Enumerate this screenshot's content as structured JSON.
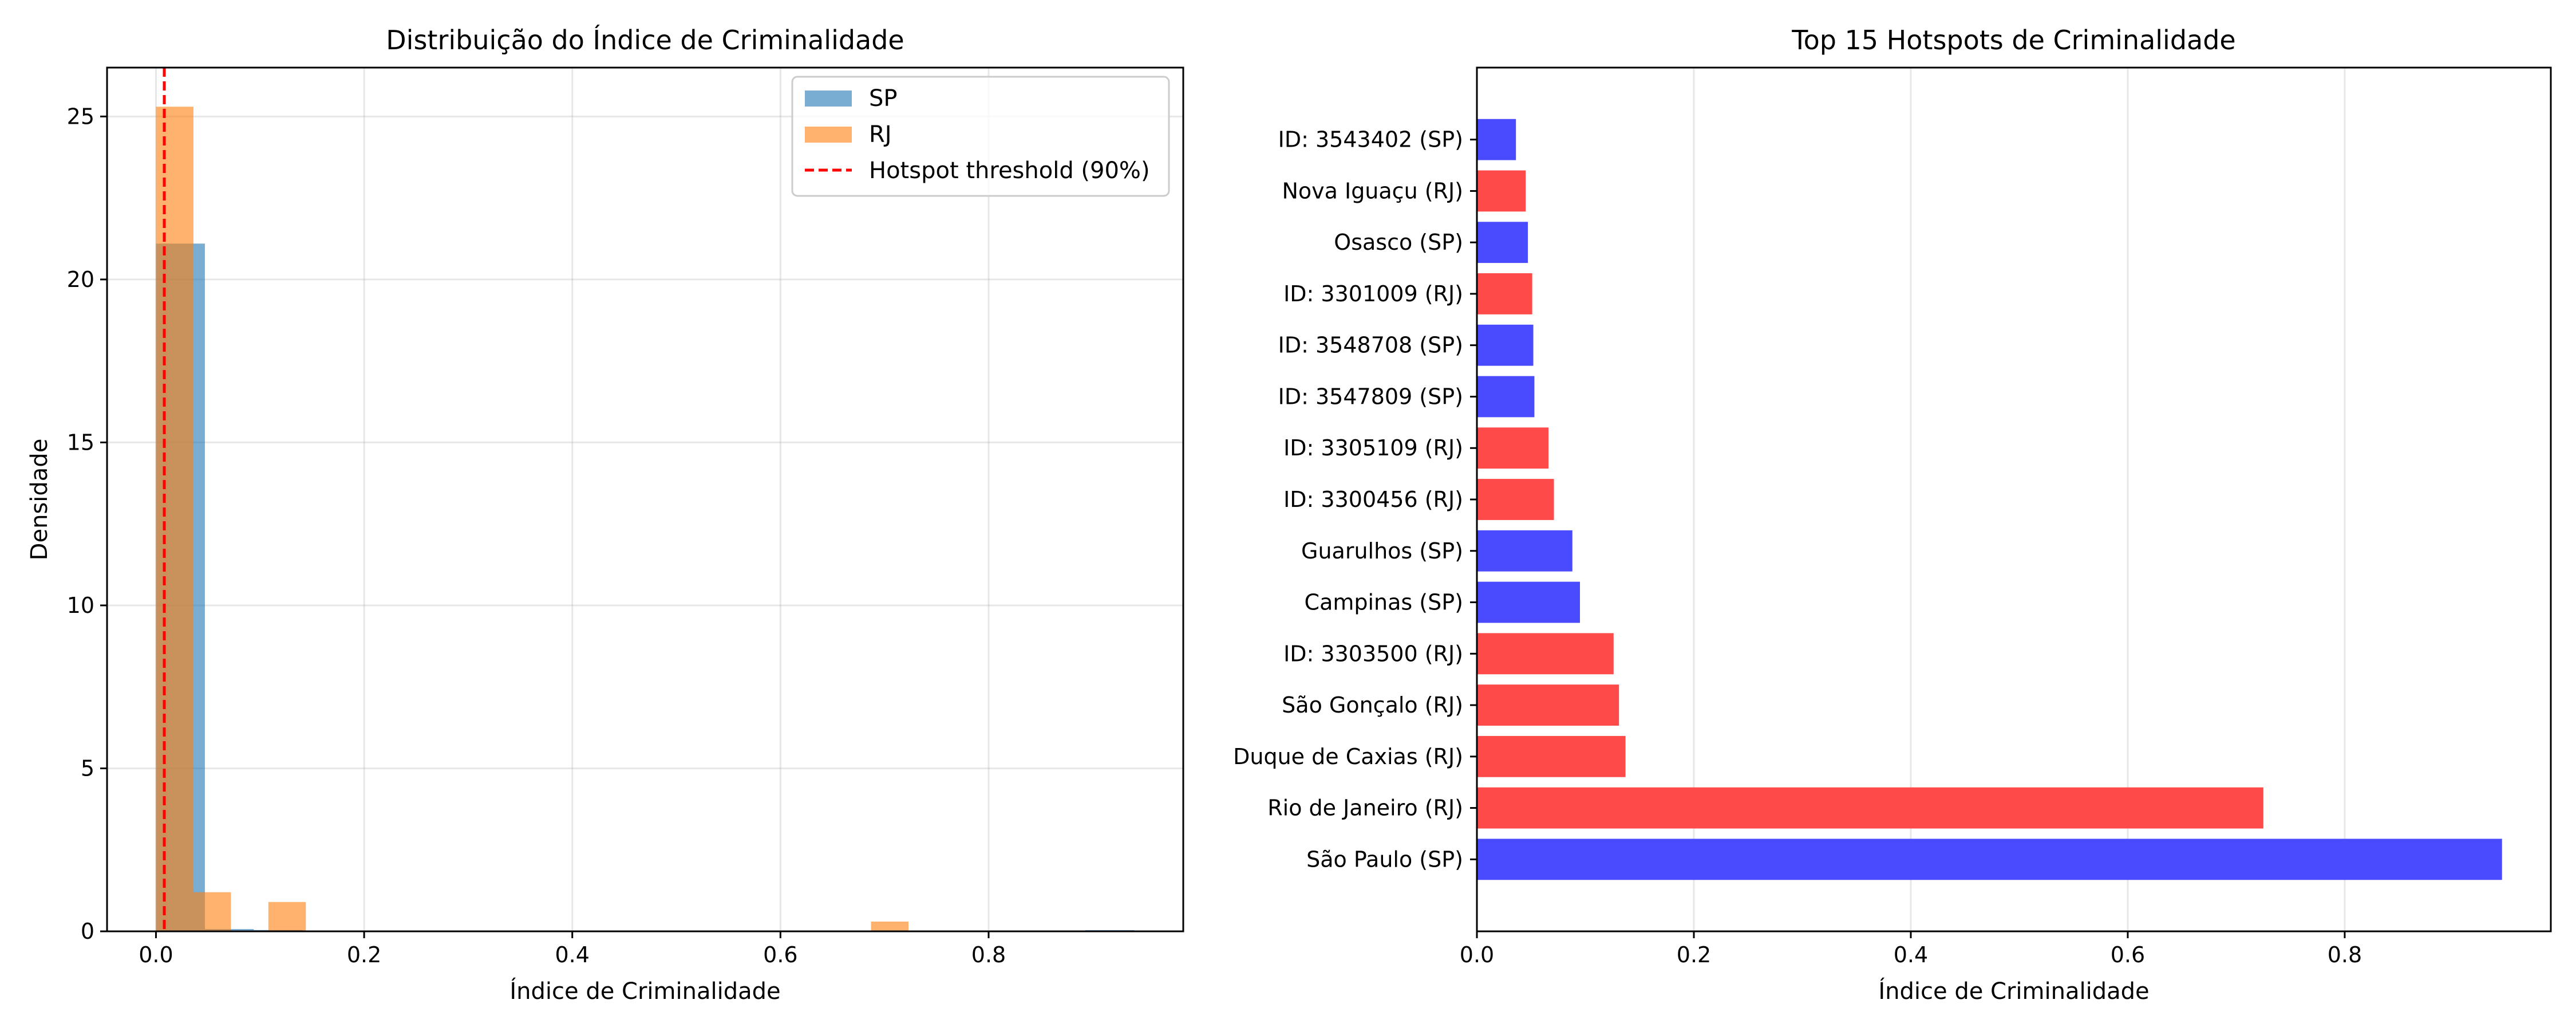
{
  "chart_data": [
    {
      "type": "histogram",
      "title": "Distribuição do Índice de Criminalidade",
      "xlabel": "Índice de Criminalidade",
      "ylabel": "Densidade",
      "xlim": [
        -0.047,
        0.987
      ],
      "ylim": [
        0,
        26.5
      ],
      "xticks": [
        0.0,
        0.2,
        0.4,
        0.6,
        0.8
      ],
      "xtick_labels": [
        "0.0",
        "0.2",
        "0.4",
        "0.6",
        "0.8"
      ],
      "yticks": [
        0,
        5,
        10,
        15,
        20,
        25
      ],
      "ytick_labels": [
        "0",
        "5",
        "10",
        "15",
        "20",
        "25"
      ],
      "grid": true,
      "legend_position": "top-right",
      "series": [
        {
          "name": "SP",
          "color": "#1f77b4",
          "opacity": 0.6,
          "bins": [
            {
              "x0": 0.0,
              "x1": 0.047,
              "density": 21.1
            },
            {
              "x0": 0.047,
              "x1": 0.094,
              "density": 0.07
            },
            {
              "x0": 0.094,
              "x1": 0.141,
              "density": 0.04
            },
            {
              "x0": 0.893,
              "x1": 0.94,
              "density": 0.03
            }
          ]
        },
        {
          "name": "RJ",
          "color": "#ff7f0e",
          "opacity": 0.6,
          "bins": [
            {
              "x0": 0.0,
              "x1": 0.036,
              "density": 25.3
            },
            {
              "x0": 0.036,
              "x1": 0.072,
              "density": 1.2
            },
            {
              "x0": 0.108,
              "x1": 0.144,
              "density": 0.9
            },
            {
              "x0": 0.687,
              "x1": 0.723,
              "density": 0.3
            }
          ]
        }
      ],
      "reference_line": {
        "name": "Hotspot threshold (90%)",
        "x": 0.008,
        "color": "#ff0000",
        "style": "dashed"
      }
    },
    {
      "type": "bar",
      "orientation": "horizontal",
      "title": "Top 15 Hotspots de Criminalidade",
      "xlabel": "Índice de Criminalidade",
      "ylabel": "",
      "xlim": [
        0,
        0.99
      ],
      "xticks": [
        0.0,
        0.2,
        0.4,
        0.6,
        0.8
      ],
      "xtick_labels": [
        "0.0",
        "0.2",
        "0.4",
        "0.6",
        "0.8"
      ],
      "grid": true,
      "state_colors": {
        "SP": "#4a4aff",
        "RJ": "#ff4a4a"
      },
      "bars": [
        {
          "label": "São Paulo (SP)",
          "value": 0.945,
          "state": "SP"
        },
        {
          "label": "Rio de Janeiro (RJ)",
          "value": 0.725,
          "state": "RJ"
        },
        {
          "label": "Duque de Caxias (RJ)",
          "value": 0.137,
          "state": "RJ"
        },
        {
          "label": "São Gonçalo (RJ)",
          "value": 0.131,
          "state": "RJ"
        },
        {
          "label": "ID: 3303500 (RJ)",
          "value": 0.126,
          "state": "RJ"
        },
        {
          "label": "Campinas (SP)",
          "value": 0.095,
          "state": "SP"
        },
        {
          "label": "Guarulhos (SP)",
          "value": 0.088,
          "state": "SP"
        },
        {
          "label": "ID: 3300456 (RJ)",
          "value": 0.071,
          "state": "RJ"
        },
        {
          "label": "ID: 3305109 (RJ)",
          "value": 0.066,
          "state": "RJ"
        },
        {
          "label": "ID: 3547809 (SP)",
          "value": 0.053,
          "state": "SP"
        },
        {
          "label": "ID: 3548708 (SP)",
          "value": 0.052,
          "state": "SP"
        },
        {
          "label": "ID: 3301009 (RJ)",
          "value": 0.051,
          "state": "RJ"
        },
        {
          "label": "Osasco (SP)",
          "value": 0.047,
          "state": "SP"
        },
        {
          "label": "Nova Iguaçu (RJ)",
          "value": 0.045,
          "state": "RJ"
        },
        {
          "label": "ID: 3543402 (SP)",
          "value": 0.036,
          "state": "SP"
        }
      ]
    }
  ]
}
